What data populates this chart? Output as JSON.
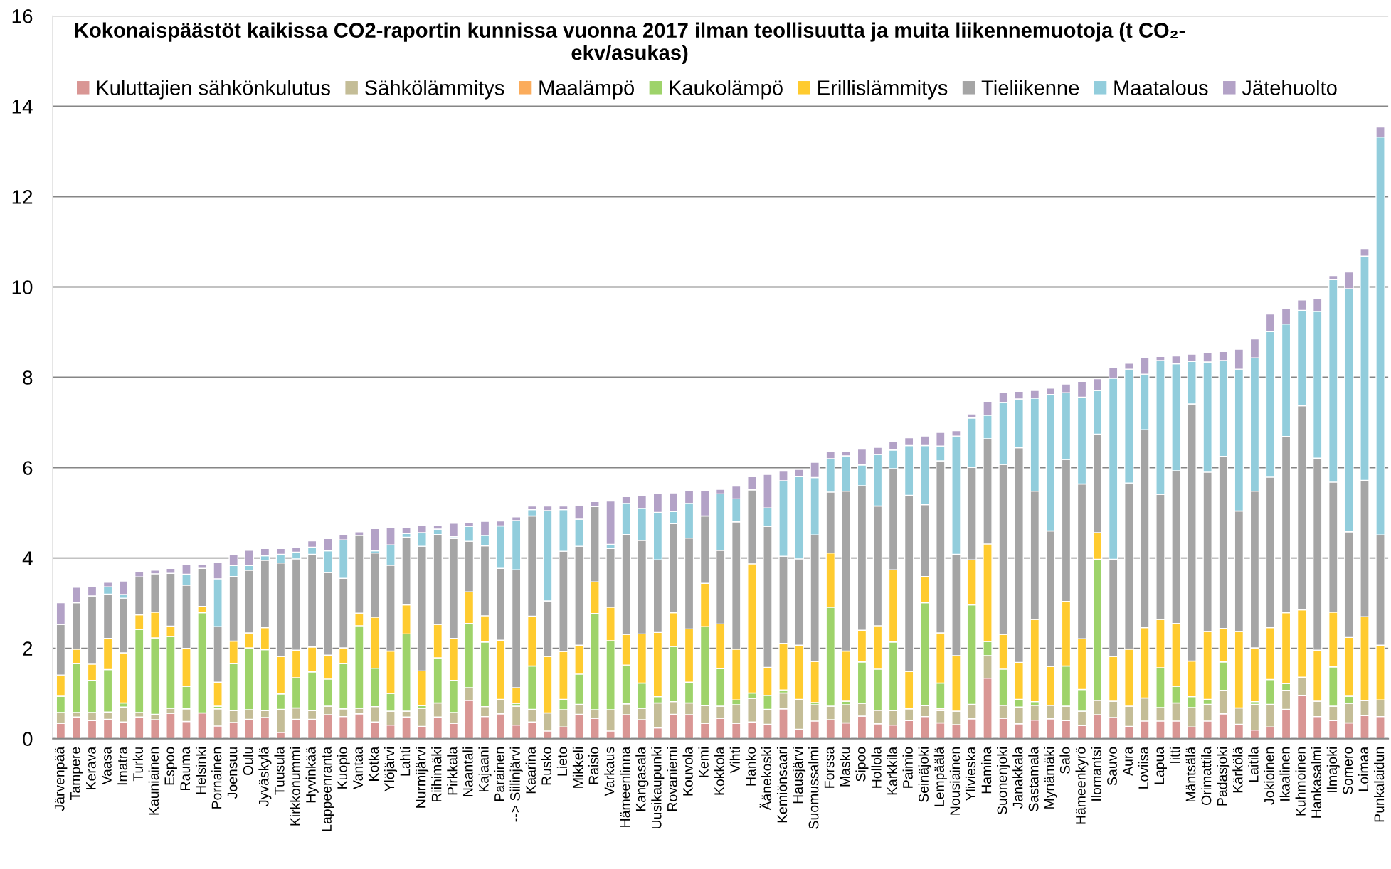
{
  "chart_data": {
    "type": "bar",
    "stacked": true,
    "title": "Kokonaispäästöt kaikissa CO2-raportin kunnissa vuonna 2017 ilman teollisuutta ja muita liikennemuotoja (t CO₂-\nekv/asukas)",
    "categories": [
      "Järvenpää",
      "Tampere",
      "Kerava",
      "Vaasa",
      "Imatra",
      "Turku",
      "Kauniainen",
      "Espoo",
      "Rauma",
      "Helsinki",
      "Pornainen",
      "Joensuu",
      "Oulu",
      "Jyväskylä",
      "Tuusula",
      "Kirkkonummi",
      "Hyvinkää",
      "Lappeenranta",
      "Kuopio",
      "Vantaa",
      "Kotka",
      "Ylöjärvi",
      "Lahti",
      "Nurmijärvi",
      "Riihimäki",
      "Pirkkala",
      "Naantali",
      "Kajaani",
      "Parainen",
      "--> Siilinjärvi",
      "Kaarina",
      "Rusko",
      "Lieto",
      "Mikkeli",
      "Raisio",
      "Varkaus",
      "Hämeenlinna",
      "Kangasala",
      "Uusikaupunki",
      "Rovaniemi",
      "Kouvola",
      "Kemi",
      "Kokkola",
      "Vihti",
      "Hanko",
      "Äänekoski",
      "Kemiönsaari",
      "Hausjärvi",
      "Suomussalmi",
      "Forssa",
      "Masku",
      "Sipoo",
      "Hollola",
      "Karkkila",
      "Paimio",
      "Seinäjoki",
      "Lempäälä",
      "Nousiainen",
      "Ylivieska",
      "Hamina",
      "Suonenjoki",
      "Janakkala",
      "Sastamala",
      "Mynämäki",
      "Salo",
      "Hämeenkyrö",
      "Ilomantsi",
      "Sauvo",
      "Aura",
      "Loviisa",
      "Lapua",
      "Iitti",
      "Mäntsälä",
      "Orimattila",
      "Padasjoki",
      "Kärkölä",
      "Laitila",
      "Jokioinen",
      "Ikaalinen",
      "Kuhmoinen",
      "Hankasalmi",
      "Ilmajoki",
      "Somero",
      "Loimaa",
      "Punkalaidun"
    ],
    "series": [
      {
        "name": "Kuluttajien sähkönkulutus",
        "color": "#d99694",
        "values": [
          0.34,
          0.48,
          0.4,
          0.43,
          0.37,
          0.48,
          0.42,
          0.56,
          0.38,
          0.57,
          0.28,
          0.36,
          0.43,
          0.47,
          0.14,
          0.43,
          0.43,
          0.53,
          0.49,
          0.55,
          0.37,
          0.3,
          0.48,
          0.27,
          0.48,
          0.34,
          0.85,
          0.49,
          0.55,
          0.3,
          0.37,
          0.17,
          0.26,
          0.54,
          0.45,
          0.17,
          0.53,
          0.42,
          0.24,
          0.54,
          0.53,
          0.34,
          0.45,
          0.34,
          0.37,
          0.32,
          0.66,
          0.21,
          0.39,
          0.42,
          0.35,
          0.5,
          0.33,
          0.3,
          0.4,
          0.49,
          0.35,
          0.31,
          0.44,
          1.34,
          0.45,
          0.33,
          0.41,
          0.44,
          0.4,
          0.29,
          0.53,
          0.47,
          0.27,
          0.39,
          0.39,
          0.39,
          0.26,
          0.39,
          0.55,
          0.32,
          0.19,
          0.26,
          0.65,
          0.95,
          0.49,
          0.4,
          0.35,
          0.51,
          0.49
        ]
      },
      {
        "name": "Sähkölämmitys",
        "color": "#c4bd97",
        "values": [
          0.24,
          0.1,
          0.18,
          0.16,
          0.33,
          0.1,
          0.12,
          0.11,
          0.28,
          null,
          0.38,
          0.26,
          0.21,
          0.15,
          0.51,
          0.25,
          0.19,
          0.19,
          0.17,
          0.12,
          0.34,
          0.31,
          0.13,
          0.4,
          0.31,
          0.24,
          0.28,
          0.22,
          0.32,
          0.42,
          0.28,
          0.4,
          0.38,
          0.22,
          0.19,
          0.47,
          0.24,
          0.25,
          0.55,
          0.28,
          0.26,
          0.39,
          0.27,
          0.41,
          0.52,
          0.33,
          0.35,
          0.66,
          0.36,
          0.3,
          0.4,
          0.28,
          0.3,
          0.32,
          0.26,
          0.24,
          0.27,
          0.3,
          0.32,
          0.5,
          0.29,
          0.37,
          0.33,
          0.3,
          0.32,
          0.32,
          0.32,
          0.36,
          0.45,
          0.51,
          0.3,
          0.4,
          0.43,
          0.37,
          0.52,
          0.36,
          0.57,
          0.5,
          0.42,
          0.41,
          0.34,
          0.32,
          0.43,
          0.33,
          0.37
        ]
      },
      {
        "name": "Maalämpö",
        "color": "#fbac5c",
        "values": [
          null,
          null,
          null,
          null,
          null,
          null,
          null,
          null,
          null,
          null,
          null,
          null,
          null,
          null,
          null,
          null,
          null,
          null,
          null,
          null,
          null,
          null,
          null,
          null,
          null,
          null,
          null,
          null,
          null,
          null,
          null,
          null,
          null,
          null,
          null,
          null,
          null,
          null,
          null,
          null,
          null,
          null,
          null,
          null,
          null,
          null,
          null,
          null,
          null,
          null,
          null,
          null,
          null,
          null,
          null,
          null,
          0.04,
          null,
          null,
          null,
          null,
          null,
          null,
          null,
          null,
          null,
          null,
          null,
          null,
          null,
          null,
          null,
          null,
          null,
          null,
          null,
          null,
          null,
          null,
          null,
          null,
          null,
          null,
          null,
          null
        ]
      },
      {
        "name": "Kaukolämpö",
        "color": "#9ed36a",
        "values": [
          0.36,
          1.08,
          0.71,
          0.94,
          0.09,
          1.84,
          1.69,
          1.59,
          0.5,
          2.22,
          0.06,
          1.04,
          1.37,
          1.35,
          0.34,
          0.67,
          0.86,
          0.6,
          1.0,
          1.83,
          0.85,
          0.39,
          1.71,
          0.06,
          1.0,
          0.71,
          1.42,
          1.43,
          null,
          0.06,
          0.96,
          null,
          0.23,
          0.67,
          2.13,
          1.53,
          0.86,
          0.56,
          0.14,
          1.22,
          0.46,
          1.75,
          0.83,
          0.11,
          0.12,
          0.31,
          0.07,
          null,
          0.05,
          2.19,
          0.08,
          0.92,
          0.91,
          1.52,
          null,
          2.28,
          0.57,
          null,
          2.2,
          0.31,
          0.8,
          0.17,
          0.08,
          null,
          0.89,
          0.48,
          3.12,
          null,
          null,
          null,
          0.88,
          0.37,
          0.24,
          0.11,
          0.63,
          null,
          0.06,
          0.55,
          0.15,
          null,
          null,
          0.87,
          0.16,
          null,
          null
        ]
      },
      {
        "name": "Erillislämmitys",
        "color": "#ffcb2f",
        "values": [
          0.47,
          0.32,
          0.36,
          0.69,
          1.11,
          0.32,
          0.57,
          0.23,
          0.84,
          0.14,
          0.53,
          0.5,
          0.33,
          0.49,
          0.83,
          0.61,
          0.55,
          0.53,
          0.35,
          0.28,
          1.13,
          0.94,
          0.64,
          0.77,
          0.74,
          0.93,
          0.7,
          0.58,
          1.31,
          0.35,
          1.1,
          1.25,
          1.06,
          0.64,
          0.7,
          0.74,
          0.68,
          1.09,
          1.42,
          0.75,
          1.18,
          0.96,
          0.99,
          1.12,
          2.86,
          0.62,
          1.03,
          1.2,
          0.91,
          1.2,
          1.11,
          0.7,
          0.96,
          1.6,
          0.83,
          0.58,
          1.11,
          1.23,
          1.0,
          2.16,
          0.77,
          0.82,
          1.82,
          0.86,
          1.43,
          1.12,
          0.59,
          0.99,
          1.26,
          1.56,
          1.07,
          1.39,
          0.79,
          1.5,
          0.74,
          1.69,
          1.19,
          1.15,
          1.57,
          1.49,
          1.13,
          1.21,
          1.3,
          1.86,
          1.21
        ]
      },
      {
        "name": "Tieliikenne",
        "color": "#a5a5a5",
        "values": [
          1.12,
          1.03,
          1.51,
          0.98,
          1.21,
          0.84,
          0.85,
          1.17,
          1.4,
          0.84,
          1.23,
          1.43,
          1.39,
          1.49,
          2.07,
          2.02,
          2.05,
          1.83,
          1.54,
          1.72,
          1.42,
          1.9,
          1.5,
          2.76,
          1.99,
          2.21,
          1.12,
          1.55,
          1.59,
          2.61,
          2.22,
          1.23,
          2.22,
          2.19,
          1.67,
          1.3,
          2.21,
          2.07,
          1.61,
          1.97,
          2.01,
          1.49,
          1.63,
          2.82,
          1.64,
          3.12,
          1.93,
          1.91,
          2.8,
          1.35,
          3.54,
          3.2,
          2.65,
          2.24,
          3.9,
          1.59,
          3.81,
          2.24,
          2.05,
          2.33,
          3.76,
          4.75,
          2.84,
          3.0,
          3.14,
          3.43,
          2.18,
          2.15,
          3.68,
          4.38,
          2.77,
          3.38,
          5.69,
          3.53,
          3.81,
          2.67,
          3.47,
          3.33,
          3.9,
          4.52,
          4.25,
          2.88,
          2.34,
          3.02,
          2.44
        ]
      },
      {
        "name": "Maatalous",
        "color": "#92cddc",
        "values": [
          null,
          null,
          null,
          0.16,
          0.08,
          null,
          null,
          null,
          0.24,
          null,
          1.06,
          0.24,
          0.1,
          0.1,
          0.19,
          0.15,
          0.16,
          0.48,
          0.85,
          null,
          0.05,
          0.45,
          0.08,
          0.3,
          0.12,
          0.04,
          0.33,
          0.23,
          0.94,
          1.09,
          0.14,
          2.0,
          0.92,
          0.6,
          null,
          0.09,
          0.69,
          0.71,
          1.05,
          0.27,
          0.77,
          null,
          1.25,
          0.51,
          null,
          0.41,
          1.67,
          1.82,
          1.27,
          0.74,
          0.78,
          0.46,
          1.14,
          0.41,
          1.1,
          1.31,
          0.33,
          2.62,
          1.09,
          0.52,
          1.37,
          1.08,
          2.06,
          3.02,
          1.48,
          1.92,
          0.97,
          4.01,
          2.52,
          1.23,
          2.96,
          2.37,
          0.94,
          2.44,
          2.12,
          3.14,
          2.95,
          3.22,
          2.49,
          2.11,
          3.25,
          4.48,
          5.38,
          4.96,
          8.81
        ]
      },
      {
        "name": "Jätehuolto",
        "color": "#b3a2c7",
        "values": [
          0.48,
          0.34,
          0.2,
          0.1,
          0.3,
          0.11,
          0.08,
          0.11,
          0.21,
          0.08,
          0.36,
          0.24,
          0.34,
          0.16,
          0.13,
          0.1,
          0.14,
          0.27,
          0.11,
          0.08,
          0.49,
          0.39,
          0.14,
          0.17,
          0.09,
          0.3,
          0.08,
          0.31,
          0.11,
          0.08,
          0.08,
          0.1,
          0.08,
          0.3,
          0.11,
          0.96,
          0.15,
          0.29,
          0.41,
          0.41,
          0.29,
          0.57,
          0.1,
          0.28,
          0.29,
          0.74,
          0.21,
          0.16,
          0.34,
          0.15,
          0.09,
          0.35,
          0.16,
          0.19,
          0.17,
          0.21,
          0.3,
          0.12,
          0.09,
          0.31,
          0.22,
          0.17,
          0.17,
          0.14,
          0.19,
          0.35,
          0.26,
          0.23,
          0.13,
          0.37,
          0.09,
          0.17,
          0.16,
          0.2,
          0.2,
          0.44,
          0.42,
          0.39,
          0.35,
          0.23,
          0.29,
          0.09,
          0.37,
          0.17,
          0.22
        ]
      }
    ],
    "ylim": [
      0,
      16
    ],
    "yticks": [
      0,
      2,
      4,
      6,
      8,
      10,
      12,
      14,
      16
    ],
    "grid": "y",
    "legend": "top"
  }
}
